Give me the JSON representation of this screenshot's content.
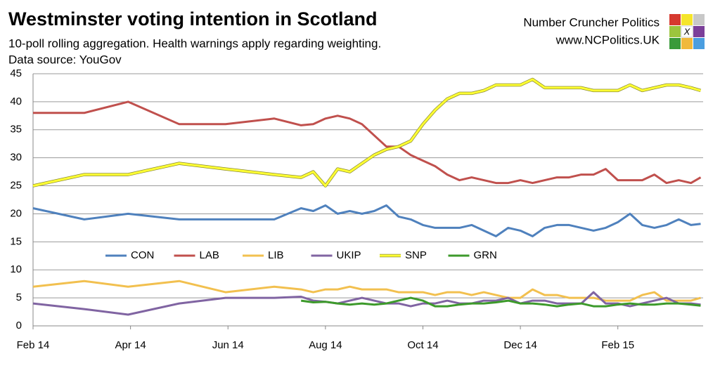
{
  "chart_data": {
    "type": "line",
    "title": "Westminster voting intention in Scotland",
    "subtitle": "10-poll rolling aggregation. Health warnings apply regarding weighting.",
    "source": "Data source: YouGov",
    "brand": "Number Cruncher Politics",
    "website": "www.NCPolitics.UK",
    "logo_mark": "X",
    "x": [
      0,
      1.05,
      1.95,
      3.0,
      3.95,
      4.95,
      5.5,
      5.75,
      6.0,
      6.25,
      6.5,
      6.75,
      7.0,
      7.25,
      7.5,
      7.75,
      8.0,
      8.25,
      8.5,
      8.75,
      9.0,
      9.25,
      9.5,
      9.75,
      10.0,
      10.25,
      10.5,
      10.75,
      11.0,
      11.25,
      11.5,
      11.75,
      12.0,
      12.25,
      12.5,
      12.75,
      13.0,
      13.25,
      13.5,
      13.7
    ],
    "xlim": [
      0,
      13.75
    ],
    "xticks": [
      {
        "value": 0,
        "label": "Feb 14"
      },
      {
        "value": 2,
        "label": "Apr 14"
      },
      {
        "value": 4,
        "label": "Jun 14"
      },
      {
        "value": 6,
        "label": "Aug 14"
      },
      {
        "value": 8,
        "label": "Oct 14"
      },
      {
        "value": 10,
        "label": "Dec 14"
      },
      {
        "value": 12,
        "label": "Feb 15"
      }
    ],
    "ylim": [
      0,
      45
    ],
    "yticks": [
      0,
      5,
      10,
      15,
      20,
      25,
      30,
      35,
      40,
      45
    ],
    "grid": true,
    "series": [
      {
        "name": "CON",
        "color": "#4f81bd",
        "values": [
          21,
          19,
          20,
          19,
          19,
          19,
          21,
          20.5,
          21.5,
          20,
          20.5,
          20,
          20.5,
          21.5,
          19.5,
          19,
          18,
          17.5,
          17.5,
          17.5,
          18,
          17,
          16,
          17.5,
          17,
          16,
          17.5,
          18,
          18,
          17.5,
          17,
          17.5,
          18.5,
          20,
          18,
          17.5,
          18,
          19,
          18,
          18.2
        ]
      },
      {
        "name": "LAB",
        "color": "#c0504d",
        "values": [
          38,
          38,
          40,
          36,
          36,
          37,
          35.8,
          36,
          37,
          37.5,
          37,
          36,
          34,
          32,
          32,
          30.5,
          29.5,
          28.5,
          27,
          26,
          26.5,
          26,
          25.5,
          25.5,
          26,
          25.5,
          26,
          26.5,
          26.5,
          27,
          27,
          28,
          26,
          26,
          26,
          27,
          25.5,
          26,
          25.5,
          26.5
        ]
      },
      {
        "name": "LIB",
        "color": "#f2c04f",
        "values": [
          7,
          8,
          7,
          8,
          6,
          7,
          6.5,
          6,
          6.5,
          6.5,
          7,
          6.5,
          6.5,
          6.5,
          6,
          6,
          6,
          5.5,
          6,
          6,
          5.5,
          6,
          5.5,
          5,
          5,
          6.5,
          5.5,
          5.5,
          5,
          5,
          5,
          4.5,
          4.5,
          4.5,
          5.5,
          6,
          4.5,
          4.5,
          4.5,
          5
        ]
      },
      {
        "name": "UKIP",
        "color": "#8064a2",
        "values": [
          4,
          3,
          2,
          4,
          5,
          5,
          5.2,
          4.5,
          4.3,
          4,
          4.5,
          5,
          4.5,
          4,
          4,
          3.5,
          4,
          4,
          4.5,
          4,
          4,
          4.5,
          4.5,
          5,
          4,
          4.5,
          4.5,
          4,
          4,
          4,
          6,
          4,
          4,
          3.5,
          4,
          4.5,
          5,
          4,
          4,
          3.8
        ]
      },
      {
        "name": "SNP",
        "color": "#ffff33",
        "values": [
          25,
          27,
          27,
          29,
          28,
          27,
          26.5,
          27.5,
          25,
          28,
          27.5,
          29,
          30.5,
          31.5,
          32,
          33,
          36,
          38.5,
          40.5,
          41.5,
          41.5,
          42,
          43,
          43,
          43,
          44,
          42.5,
          42.5,
          42.5,
          42.5,
          42,
          42,
          42,
          43,
          42,
          42.5,
          43,
          43,
          42.5,
          42
        ]
      },
      {
        "name": "GRN",
        "color": "#3d9a2b",
        "values": [
          null,
          null,
          null,
          null,
          null,
          null,
          4.5,
          4.2,
          4.3,
          4,
          3.8,
          4,
          3.8,
          4,
          4.5,
          5,
          4.5,
          3.5,
          3.5,
          3.8,
          4,
          4,
          4.2,
          4.5,
          4,
          4,
          3.8,
          3.5,
          3.8,
          4,
          3.5,
          3.5,
          3.8,
          4,
          3.8,
          3.8,
          4,
          4,
          3.8,
          3.6
        ]
      }
    ]
  }
}
